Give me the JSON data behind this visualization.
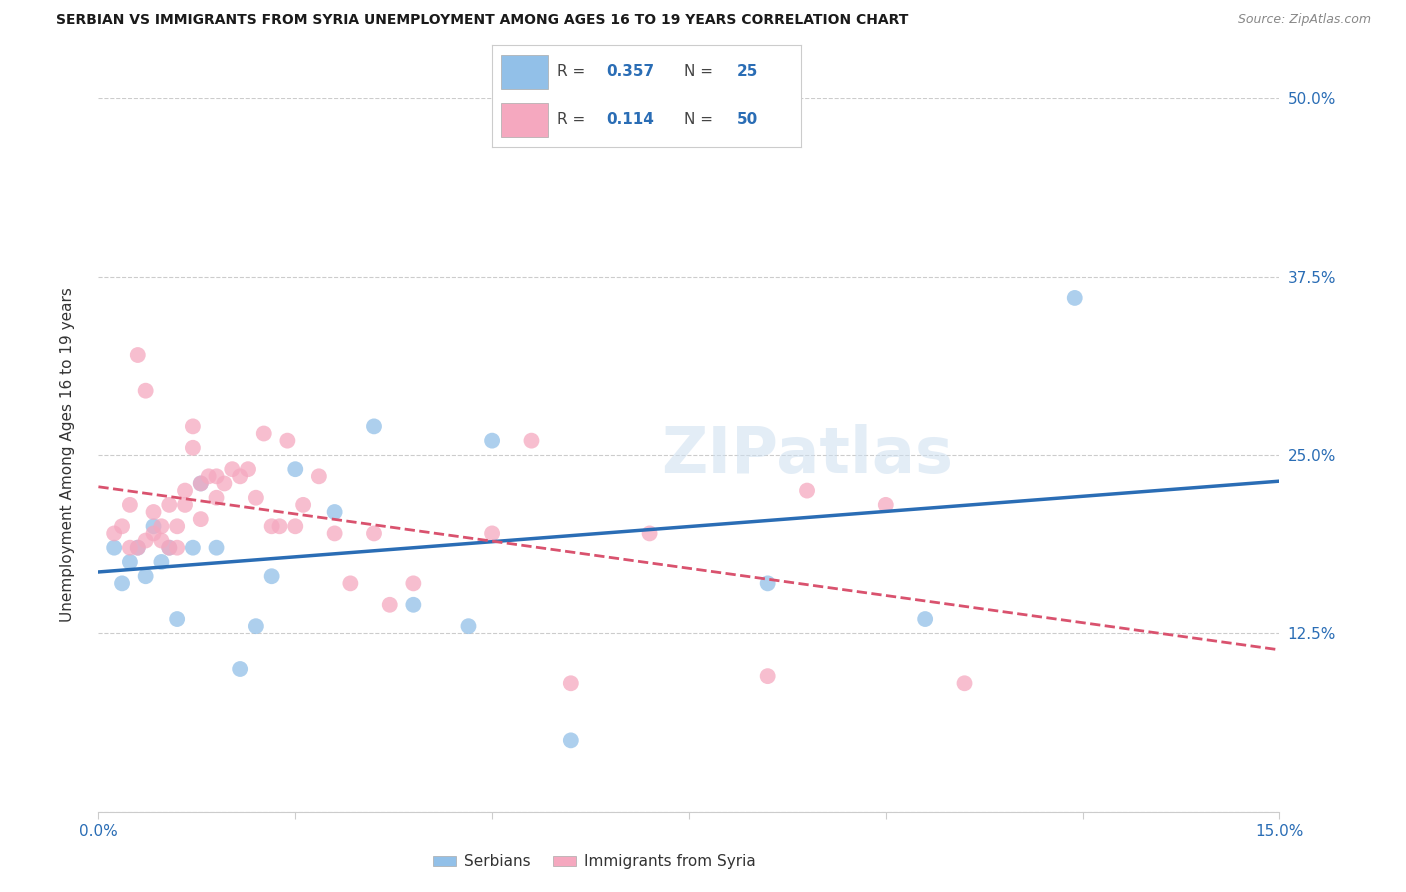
{
  "title": "SERBIAN VS IMMIGRANTS FROM SYRIA UNEMPLOYMENT AMONG AGES 16 TO 19 YEARS CORRELATION CHART",
  "source": "Source: ZipAtlas.com",
  "ylabel_label": "Unemployment Among Ages 16 to 19 years",
  "xlim": [
    0.0,
    0.15
  ],
  "ylim": [
    0.0,
    0.5
  ],
  "xticks": [
    0.0,
    0.025,
    0.05,
    0.075,
    0.1,
    0.125,
    0.15
  ],
  "xtick_labels": [
    "0.0%",
    "",
    "",
    "",
    "",
    "",
    "15.0%"
  ],
  "yticks": [
    0.0,
    0.125,
    0.25,
    0.375,
    0.5
  ],
  "ytick_labels_right": [
    "",
    "12.5%",
    "25.0%",
    "37.5%",
    "50.0%"
  ],
  "watermark": "ZIPatlas",
  "serbian_color": "#92c0e8",
  "syria_color": "#f5a8bf",
  "serbian_line_color": "#2a6db5",
  "syria_line_color": "#d9526e",
  "accent_color": "#2a6db5",
  "R_serbian": "0.357",
  "N_serbian": "25",
  "R_syria": "0.114",
  "N_syria": "50",
  "serbian_x": [
    0.002,
    0.003,
    0.004,
    0.005,
    0.006,
    0.007,
    0.008,
    0.009,
    0.01,
    0.012,
    0.013,
    0.015,
    0.018,
    0.02,
    0.022,
    0.025,
    0.03,
    0.035,
    0.04,
    0.047,
    0.05,
    0.06,
    0.085,
    0.105,
    0.124
  ],
  "serbian_y": [
    0.185,
    0.16,
    0.175,
    0.185,
    0.165,
    0.2,
    0.175,
    0.185,
    0.135,
    0.185,
    0.23,
    0.185,
    0.1,
    0.13,
    0.165,
    0.24,
    0.21,
    0.27,
    0.145,
    0.13,
    0.26,
    0.05,
    0.16,
    0.135,
    0.36
  ],
  "syria_x": [
    0.002,
    0.003,
    0.004,
    0.004,
    0.005,
    0.005,
    0.006,
    0.006,
    0.007,
    0.007,
    0.008,
    0.008,
    0.009,
    0.009,
    0.01,
    0.01,
    0.011,
    0.011,
    0.012,
    0.012,
    0.013,
    0.013,
    0.014,
    0.015,
    0.015,
    0.016,
    0.017,
    0.018,
    0.019,
    0.02,
    0.021,
    0.022,
    0.023,
    0.024,
    0.025,
    0.026,
    0.028,
    0.03,
    0.032,
    0.035,
    0.037,
    0.04,
    0.05,
    0.055,
    0.06,
    0.07,
    0.085,
    0.09,
    0.1,
    0.11
  ],
  "syria_y": [
    0.195,
    0.2,
    0.185,
    0.215,
    0.185,
    0.32,
    0.295,
    0.19,
    0.195,
    0.21,
    0.2,
    0.19,
    0.215,
    0.185,
    0.185,
    0.2,
    0.215,
    0.225,
    0.255,
    0.27,
    0.205,
    0.23,
    0.235,
    0.22,
    0.235,
    0.23,
    0.24,
    0.235,
    0.24,
    0.22,
    0.265,
    0.2,
    0.2,
    0.26,
    0.2,
    0.215,
    0.235,
    0.195,
    0.16,
    0.195,
    0.145,
    0.16,
    0.195,
    0.26,
    0.09,
    0.195,
    0.095,
    0.225,
    0.215,
    0.09
  ]
}
